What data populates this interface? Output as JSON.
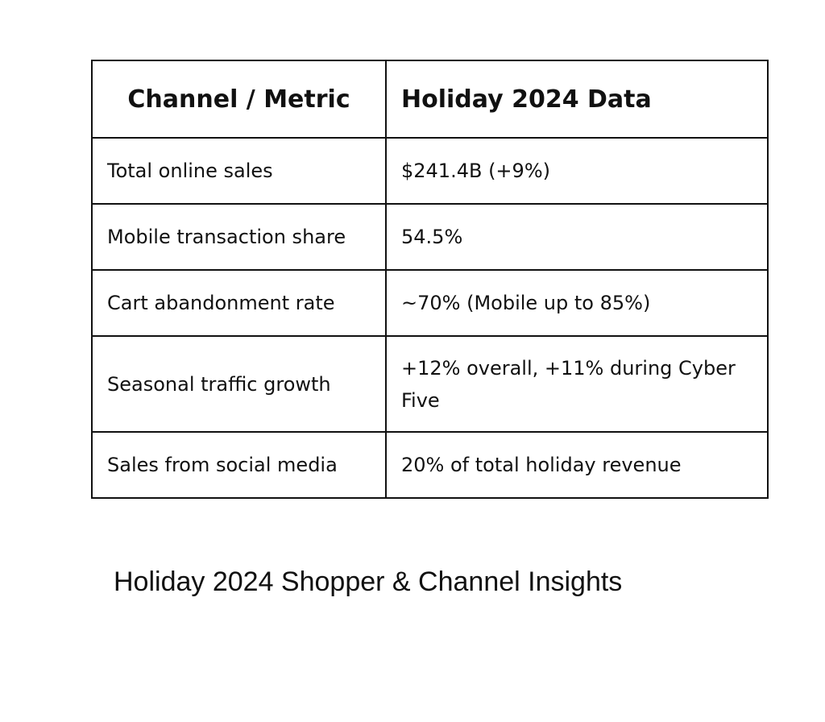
{
  "table": {
    "header": [
      "Channel / Metric",
      "Holiday 2024 Data"
    ],
    "rows": [
      [
        "Total online sales",
        "$241.4B (+9%)"
      ],
      [
        "Mobile transaction share",
        "54.5%"
      ],
      [
        "Cart abandonment rate",
        "~70% (Mobile up to 85%)"
      ],
      [
        "Seasonal traffic growth",
        "+12% overall, +11% during Cyber Five"
      ],
      [
        "Sales from social media",
        "20% of total holiday revenue"
      ]
    ]
  },
  "caption": "Holiday 2024 Shopper & Channel Insights"
}
